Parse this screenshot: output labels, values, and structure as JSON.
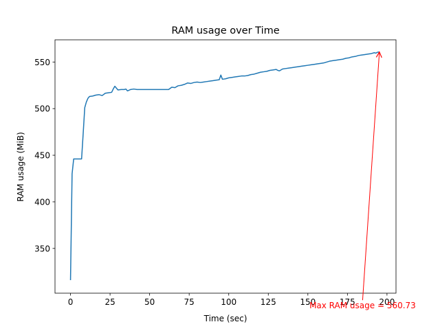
{
  "chart_data": {
    "type": "line",
    "title": "RAM usage over Time",
    "xlabel": "Time (sec)",
    "ylabel": "RAM usage (MiB)",
    "xlim": [
      -9.8,
      205.7
    ],
    "ylim": [
      302.0,
      573.8
    ],
    "xticks": [
      0,
      25,
      50,
      75,
      100,
      125,
      150,
      175,
      200
    ],
    "yticks": [
      350,
      400,
      450,
      500,
      550
    ],
    "grid": false,
    "legend": "none",
    "line_color": "#1f77b4",
    "annotation_color": "#ff0000",
    "annotation": {
      "text": "Max RAM usage = 560.73",
      "arrow_to": [
        195.2,
        560.73
      ],
      "arrow_from": [
        184.6,
        294.5
      ]
    },
    "series": [
      {
        "x": [
          0,
          1,
          2,
          4,
          6,
          7,
          8,
          9,
          10,
          11,
          12,
          14,
          16,
          18,
          20,
          22,
          24,
          26,
          27,
          28,
          30,
          32,
          34,
          35,
          36,
          38,
          40,
          42,
          45,
          50,
          55,
          60,
          62,
          64,
          66,
          68,
          70,
          72,
          74,
          76,
          78,
          80,
          82,
          84,
          86,
          88,
          90,
          92,
          94,
          95,
          96,
          98,
          100,
          102,
          104,
          106,
          108,
          110,
          112,
          114,
          116,
          118,
          120,
          122,
          124,
          126,
          128,
          130,
          131,
          132,
          134,
          136,
          138,
          140,
          142,
          144,
          146,
          148,
          150,
          152,
          154,
          156,
          158,
          160,
          162,
          164,
          166,
          168,
          170,
          172,
          174,
          176,
          178,
          180,
          182,
          184,
          186,
          188,
          190,
          192,
          193,
          194,
          195.2
        ],
        "values": [
          316,
          430,
          446,
          446,
          446,
          446,
          473,
          501,
          507,
          511,
          513,
          513.5,
          514.5,
          515,
          514,
          516.5,
          517,
          517.5,
          521,
          524,
          520,
          520.5,
          520.5,
          521,
          519,
          520.5,
          521,
          520.5,
          520.5,
          520.5,
          520.5,
          520.5,
          520.5,
          523,
          522.5,
          524.5,
          525,
          526,
          527.5,
          527,
          528,
          528.5,
          528,
          528.5,
          529,
          529.5,
          530,
          530.5,
          531,
          536,
          531.5,
          532,
          533,
          533.5,
          534,
          534.5,
          535,
          535,
          535.5,
          536.5,
          537,
          538,
          539,
          539.5,
          540,
          541,
          541.5,
          542,
          541,
          540.5,
          542.5,
          543,
          543.5,
          544,
          544.5,
          545,
          545.5,
          546,
          546.5,
          547,
          547.5,
          548,
          548.5,
          549,
          550,
          551,
          551.5,
          552,
          552.5,
          553,
          554,
          554.5,
          555.5,
          556,
          557,
          557.5,
          558,
          558.5,
          559,
          560,
          559.5,
          560.5,
          560.73
        ]
      }
    ]
  }
}
